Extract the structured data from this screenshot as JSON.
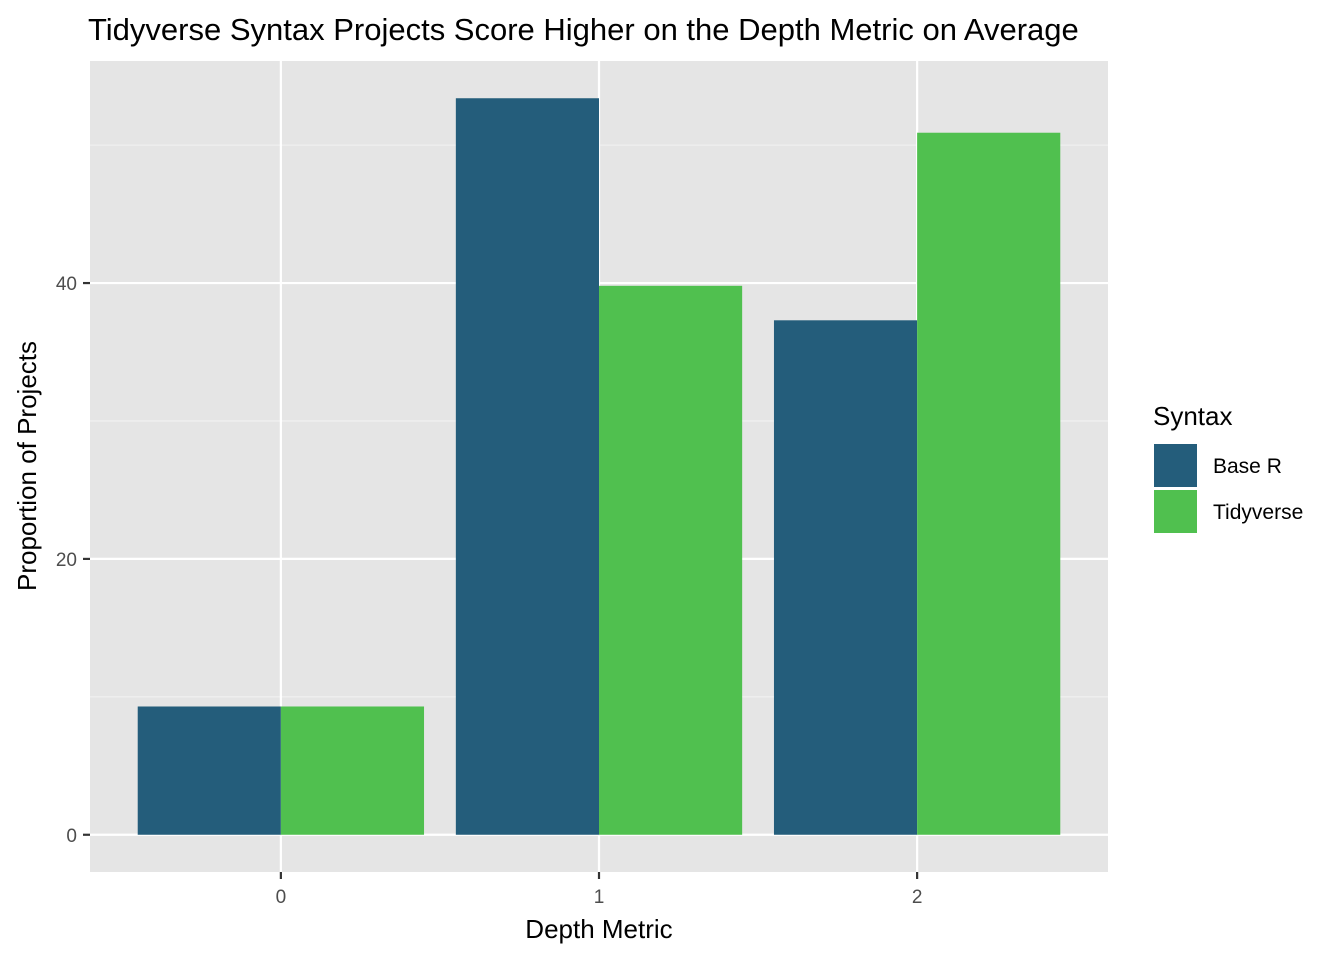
{
  "colors": {
    "panel_background": "#e5e5e5",
    "grid_major": "#ffffff",
    "grid_minor": "#f2f2f2",
    "base_r": "#245d7b",
    "tidyverse": "#50c04f",
    "tick_text": "#4d4d4d"
  },
  "chart_data": {
    "type": "bar",
    "title": "Tidyverse Syntax Projects Score Higher on the Depth Metric on Average",
    "xlabel": "Depth Metric",
    "ylabel": "Proportion of Projects",
    "categories": [
      "0",
      "1",
      "2"
    ],
    "series": [
      {
        "name": "Base R",
        "color": "#245d7b",
        "values": [
          9.3,
          53.4,
          37.3
        ]
      },
      {
        "name": "Tidyverse",
        "color": "#50c04f",
        "values": [
          9.3,
          39.8,
          50.9
        ]
      }
    ],
    "y_ticks": [
      0,
      20,
      40
    ],
    "y_tick_labels": [
      "0",
      "20",
      "40"
    ],
    "ylim": [
      -2.7,
      56.1
    ],
    "grid": true,
    "legend": {
      "title": "Syntax",
      "position": "right"
    }
  }
}
